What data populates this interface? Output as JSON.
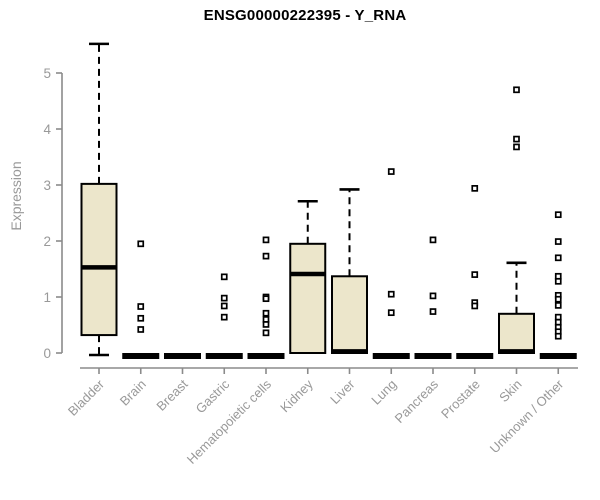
{
  "chart_data": {
    "type": "boxplot",
    "title": "ENSG00000222395 - Y_RNA",
    "ylabel": "Expression",
    "xlabel": "",
    "ylim": [
      0,
      5.6
    ],
    "yticks": [
      0,
      1,
      2,
      3,
      4,
      5
    ],
    "grid": false,
    "legend": "none",
    "colors": {
      "box_fill": "#ECE6CB",
      "box_stroke": "#000000",
      "axis": "#8b8b8b",
      "tick_text": "#999999",
      "title_text": "#000000"
    },
    "categories": [
      "Bladder",
      "Brain",
      "Breast",
      "Gastric",
      "Hematopoietic cells",
      "Kidney",
      "Liver",
      "Lung",
      "Pancreas",
      "Prostate",
      "Skin",
      "Unknown / Other"
    ],
    "series": [
      {
        "category": "Bladder",
        "whisker_low": 0,
        "q1": 0.32,
        "median": 1.53,
        "q3": 3.02,
        "whisker_high": 5.52,
        "outliers": []
      },
      {
        "category": "Brain",
        "whisker_low": 0,
        "q1": 0,
        "median": 0,
        "q3": 0,
        "whisker_high": 0,
        "outliers": [
          1.95,
          0.83,
          0.62,
          0.42
        ]
      },
      {
        "category": "Breast",
        "whisker_low": 0,
        "q1": 0,
        "median": 0,
        "q3": 0,
        "whisker_high": 0,
        "outliers": []
      },
      {
        "category": "Gastric",
        "whisker_low": 0,
        "q1": 0,
        "median": 0,
        "q3": 0,
        "whisker_high": 0,
        "outliers": [
          1.36,
          0.98,
          0.84,
          0.64
        ]
      },
      {
        "category": "Hematopoietic cells",
        "whisker_low": 0,
        "q1": 0,
        "median": 0,
        "q3": 0,
        "whisker_high": 0,
        "outliers": [
          2.02,
          1.73,
          1.0,
          0.97,
          0.71,
          0.6,
          0.51,
          0.36
        ]
      },
      {
        "category": "Kidney",
        "whisker_low": 0,
        "q1": 0,
        "median": 1.41,
        "q3": 1.95,
        "whisker_high": 2.71,
        "outliers": []
      },
      {
        "category": "Liver",
        "whisker_low": 0,
        "q1": 0,
        "median": 0.03,
        "q3": 1.37,
        "whisker_high": 2.92,
        "outliers": []
      },
      {
        "category": "Lung",
        "whisker_low": 0,
        "q1": 0,
        "median": 0,
        "q3": 0,
        "whisker_high": 0,
        "outliers": [
          3.24,
          1.05,
          0.72
        ]
      },
      {
        "category": "Pancreas",
        "whisker_low": 0,
        "q1": 0,
        "median": 0,
        "q3": 0,
        "whisker_high": 0,
        "outliers": [
          2.02,
          1.02,
          0.74
        ]
      },
      {
        "category": "Prostate",
        "whisker_low": 0,
        "q1": 0,
        "median": 0,
        "q3": 0,
        "whisker_high": 0,
        "outliers": [
          2.94,
          1.4,
          0.9,
          0.84
        ]
      },
      {
        "category": "Skin",
        "whisker_low": 0,
        "q1": 0,
        "median": 0.03,
        "q3": 0.7,
        "whisker_high": 1.61,
        "outliers": [
          4.7,
          3.82,
          3.68
        ]
      },
      {
        "category": "Unknown / Other",
        "whisker_low": 0,
        "q1": 0,
        "median": 0,
        "q3": 0,
        "whisker_high": 0,
        "outliers": [
          2.47,
          1.99,
          1.7,
          1.37,
          1.28,
          1.03,
          0.96,
          0.85,
          0.64,
          0.55,
          0.46,
          0.38,
          0.3
        ]
      }
    ]
  }
}
